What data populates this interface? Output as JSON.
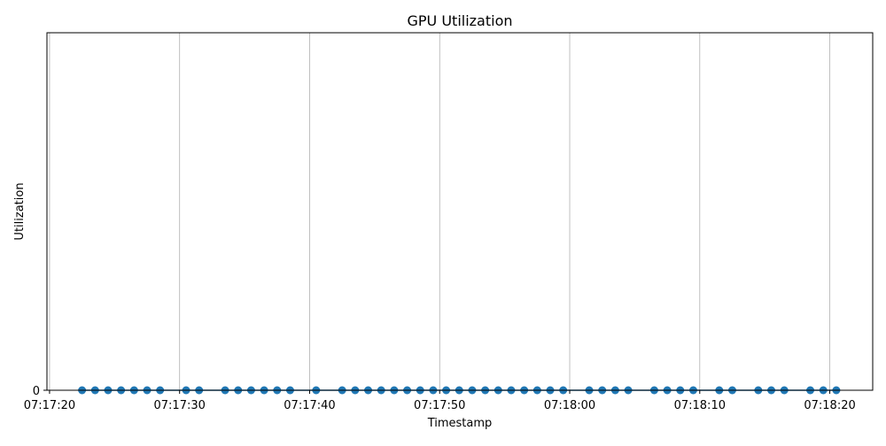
{
  "chart_data": {
    "type": "line",
    "title": "GPU Utilization",
    "xlabel": "Timestamp",
    "ylabel": "Utilization",
    "x_tick_labels": [
      "07:17:20",
      "07:17:30",
      "07:17:40",
      "07:17:50",
      "07:18:00",
      "07:18:10",
      "07:18:20"
    ],
    "x_tick_values": [
      "07:17:20",
      "07:17:30",
      "07:17:40",
      "07:17:50",
      "07:18:00",
      "07:18:10",
      "07:18:20"
    ],
    "y_tick_labels": [
      "0"
    ],
    "y_tick_values": [
      0
    ],
    "xlim": [
      "07:17:19.8",
      "07:18:23.3"
    ],
    "ylim": [
      0,
      1
    ],
    "grid": "vertical",
    "marker": "circle",
    "color": "#1f77b4",
    "series": [
      {
        "x": [
          "07:17:22.5",
          "07:17:23.5",
          "07:17:24.5",
          "07:17:25.5",
          "07:17:26.5",
          "07:17:27.5",
          "07:17:28.5",
          "07:17:30.5",
          "07:17:31.5",
          "07:17:33.5",
          "07:17:34.5",
          "07:17:35.5",
          "07:17:36.5",
          "07:17:37.5",
          "07:17:38.5",
          "07:17:40.5",
          "07:17:42.5",
          "07:17:43.5",
          "07:17:44.5",
          "07:17:45.5",
          "07:17:46.5",
          "07:17:47.5",
          "07:17:48.5",
          "07:17:49.5",
          "07:17:50.5",
          "07:17:51.5",
          "07:17:52.5",
          "07:17:53.5",
          "07:17:54.5",
          "07:17:55.5",
          "07:17:56.5",
          "07:17:57.5",
          "07:17:58.5",
          "07:17:59.5",
          "07:18:01.5",
          "07:18:02.5",
          "07:18:03.5",
          "07:18:04.5",
          "07:18:06.5",
          "07:18:07.5",
          "07:18:08.5",
          "07:18:09.5",
          "07:18:11.5",
          "07:18:12.5",
          "07:18:14.5",
          "07:18:15.5",
          "07:18:16.5",
          "07:18:18.5",
          "07:18:19.5",
          "07:18:20.5"
        ],
        "values": [
          0,
          0,
          0,
          0,
          0,
          0,
          0,
          0,
          0,
          0,
          0,
          0,
          0,
          0,
          0,
          0,
          0,
          0,
          0,
          0,
          0,
          0,
          0,
          0,
          0,
          0,
          0,
          0,
          0,
          0,
          0,
          0,
          0,
          0,
          0,
          0,
          0,
          0,
          0,
          0,
          0,
          0,
          0,
          0,
          0,
          0,
          0,
          0,
          0,
          0
        ]
      }
    ]
  }
}
